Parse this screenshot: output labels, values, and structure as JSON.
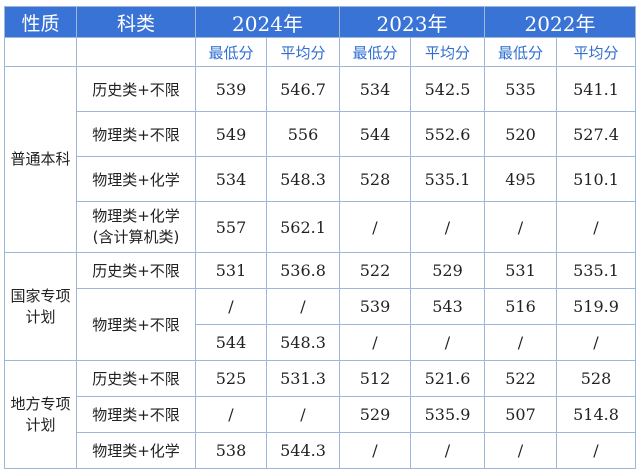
{
  "header": {
    "nature": "性质",
    "subject": "科类",
    "years": [
      "2024年",
      "2023年",
      "2022年"
    ]
  },
  "subheader": [
    "最低分",
    "平均分",
    "最低分",
    "平均分",
    "最低分",
    "平均分"
  ],
  "groups": [
    {
      "name": "普通本科",
      "rows": [
        {
          "subject": "历史类+不限",
          "values": [
            "539",
            "546.7",
            "534",
            "542.5",
            "535",
            "541.1"
          ]
        },
        {
          "subject": "物理类+不限",
          "values": [
            "549",
            "556",
            "544",
            "552.6",
            "520",
            "527.4"
          ]
        },
        {
          "subject": "物理类+化学",
          "values": [
            "534",
            "548.3",
            "528",
            "535.1",
            "495",
            "510.1"
          ]
        },
        {
          "subject": "物理类+化学",
          "subject_note": "(含计算机类)",
          "values": [
            "557",
            "562.1",
            "/",
            "/",
            "/",
            "/"
          ]
        }
      ]
    },
    {
      "name_line1": "国家专项",
      "name_line2": "计划",
      "rows": [
        {
          "subject": "历史类+不限",
          "values": [
            "531",
            "536.8",
            "522",
            "529",
            "531",
            "535.1"
          ]
        },
        {
          "subject": "物理类+不限",
          "values": [
            "/",
            "/",
            "539",
            "543",
            "516",
            "519.9"
          ]
        },
        {
          "values": [
            "544",
            "548.3",
            "/",
            "/",
            "/",
            "/"
          ]
        }
      ]
    },
    {
      "name_line1": "地方专项",
      "name_line2": "计划",
      "rows": [
        {
          "subject": "历史类+不限",
          "values": [
            "525",
            "531.3",
            "512",
            "521.6",
            "522",
            "528"
          ]
        },
        {
          "subject": "物理类+不限",
          "values": [
            "/",
            "/",
            "529",
            "535.9",
            "507",
            "514.8"
          ]
        },
        {
          "subject": "物理类+化学",
          "values": [
            "538",
            "544.3",
            "/",
            "/",
            "/",
            "/"
          ]
        }
      ]
    }
  ]
}
